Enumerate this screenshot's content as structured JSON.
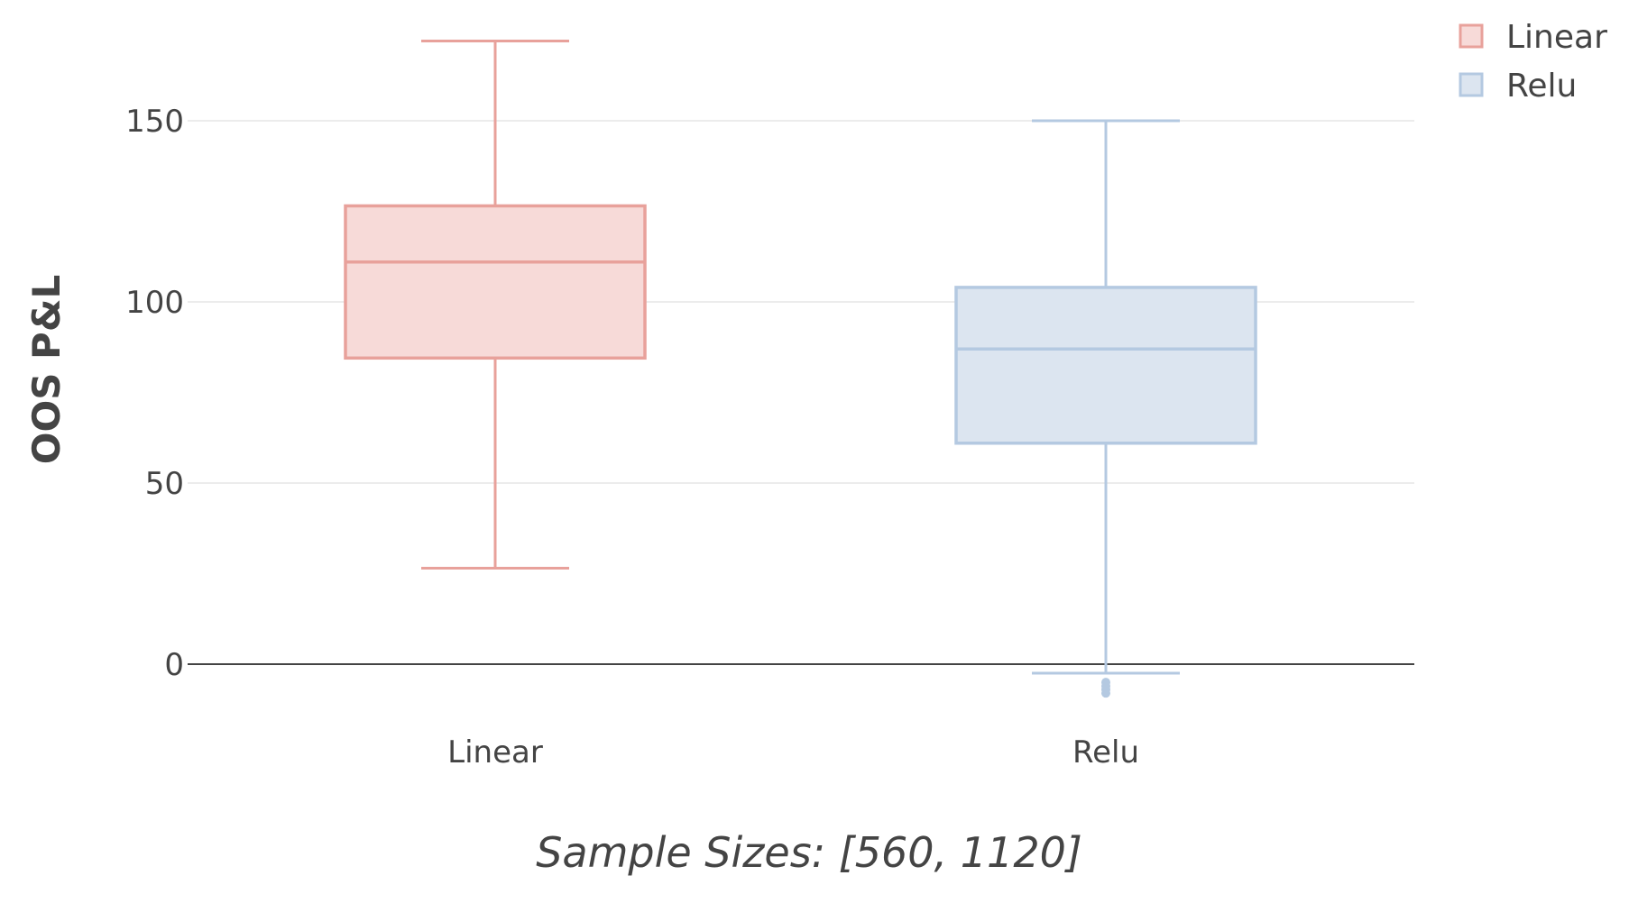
{
  "chart_data": {
    "type": "box",
    "title": "",
    "xlabel": "Sample Sizes: [560, 1120]",
    "ylabel": "OOS P&L",
    "ylim": [
      -13,
      180
    ],
    "yticks": [
      0,
      50,
      100,
      150
    ],
    "grid": true,
    "legend_position": "top-right",
    "categories": [
      "Linear",
      "Relu"
    ],
    "series": [
      {
        "name": "Linear",
        "category": "Linear",
        "color": "#e8a19b",
        "fill": "#f7dad8",
        "min": 26.5,
        "q1": 84.5,
        "median": 111,
        "q3": 126.5,
        "max": 172,
        "outliers": []
      },
      {
        "name": "Relu",
        "category": "Relu",
        "color": "#b4c9e1",
        "fill": "#dce5f0",
        "min": -2.5,
        "q1": 61,
        "median": 87,
        "q3": 104,
        "max": 150,
        "outliers": [
          -5,
          -6,
          -7,
          -8
        ]
      }
    ]
  }
}
